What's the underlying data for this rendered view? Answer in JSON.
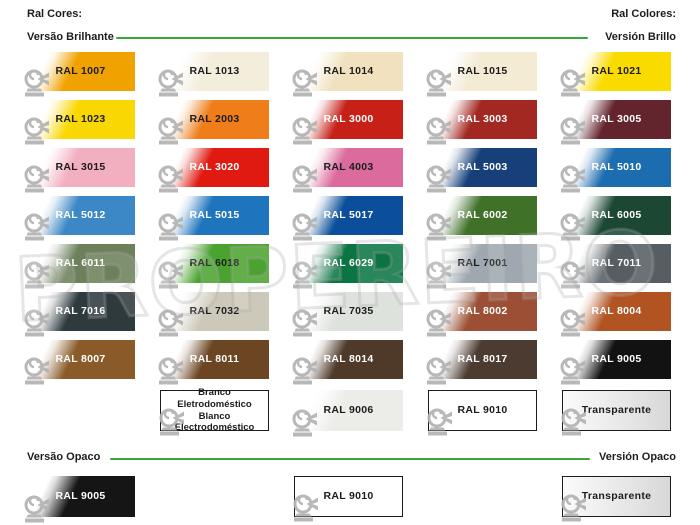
{
  "header": {
    "left": "Ral Cores:",
    "right": "Ral Colores:"
  },
  "sections": {
    "gloss": {
      "label_left": "Versão Brilhante",
      "label_right": "Versión Brillo"
    },
    "matte": {
      "label_left": "Versão Opaco",
      "label_right": "Versión Opaco"
    }
  },
  "accent_line_color": "#3aa63a",
  "watermark": {
    "text": "PROPEREIRO"
  },
  "text_colors": {
    "dark": "#1c1c1c",
    "light": "#ffffff"
  },
  "transparent_gradient": {
    "from": "#fbfbfb",
    "to": "#d8d8d8"
  },
  "border_color": "#1c1c1c",
  "icon_name": "roller-shutter-coil-icon",
  "gloss_swatches": [
    {
      "label": "RAL 1007",
      "color": "#F0A300",
      "text": "dark",
      "col": 0,
      "row": 0
    },
    {
      "label": "RAL 1013",
      "color": "#F3EDDC",
      "text": "dark",
      "col": 1,
      "row": 0
    },
    {
      "label": "RAL 1014",
      "color": "#F1E1BE",
      "text": "dark",
      "col": 2,
      "row": 0
    },
    {
      "label": "RAL 1015",
      "color": "#F4EBD5",
      "text": "dark",
      "col": 3,
      "row": 0
    },
    {
      "label": "RAL 1021",
      "color": "#FADB00",
      "text": "dark",
      "col": 4,
      "row": 0
    },
    {
      "label": "RAL 1023",
      "color": "#F9D703",
      "text": "dark",
      "col": 0,
      "row": 1
    },
    {
      "label": "RAL 2003",
      "color": "#EF7D1A",
      "text": "dark",
      "col": 1,
      "row": 1
    },
    {
      "label": "RAL 3000",
      "color": "#C62017",
      "text": "light",
      "col": 2,
      "row": 1
    },
    {
      "label": "RAL 3003",
      "color": "#A42822",
      "text": "light",
      "col": 3,
      "row": 1
    },
    {
      "label": "RAL 3005",
      "color": "#64242E",
      "text": "light",
      "col": 4,
      "row": 1
    },
    {
      "label": "RAL 3015",
      "color": "#F2AFC0",
      "text": "dark",
      "col": 0,
      "row": 2
    },
    {
      "label": "RAL 3020",
      "color": "#E01A10",
      "text": "light",
      "col": 1,
      "row": 2
    },
    {
      "label": "RAL 4003",
      "color": "#DC6B9D",
      "text": "dark",
      "col": 2,
      "row": 2
    },
    {
      "label": "RAL 5003",
      "color": "#17407A",
      "text": "light",
      "col": 3,
      "row": 2
    },
    {
      "label": "RAL 5010",
      "color": "#1C6CB0",
      "text": "light",
      "col": 4,
      "row": 2
    },
    {
      "label": "RAL 5012",
      "color": "#3C88C6",
      "text": "light",
      "col": 0,
      "row": 3
    },
    {
      "label": "RAL 5015",
      "color": "#1E75BE",
      "text": "light",
      "col": 1,
      "row": 3
    },
    {
      "label": "RAL 5017",
      "color": "#0B4E9C",
      "text": "light",
      "col": 2,
      "row": 3
    },
    {
      "label": "RAL 6002",
      "color": "#3F7128",
      "text": "light",
      "col": 3,
      "row": 3
    },
    {
      "label": "RAL 6005",
      "color": "#1B4733",
      "text": "light",
      "col": 4,
      "row": 3
    },
    {
      "label": "RAL 6011",
      "color": "#6C805A",
      "text": "light",
      "col": 0,
      "row": 4
    },
    {
      "label": "RAL 6018",
      "color": "#4BA32F",
      "text": "dark",
      "col": 1,
      "row": 4
    },
    {
      "label": "RAL 6029",
      "color": "#0B7443",
      "text": "light",
      "col": 2,
      "row": 4
    },
    {
      "label": "RAL 7001",
      "color": "#9FA8B0",
      "text": "dark",
      "col": 3,
      "row": 4
    },
    {
      "label": "RAL 7011",
      "color": "#565E63",
      "text": "light",
      "col": 4,
      "row": 4
    },
    {
      "label": "RAL 7016",
      "color": "#2E3A3E",
      "text": "light",
      "col": 0,
      "row": 5
    },
    {
      "label": "RAL 7032",
      "color": "#CDC9BA",
      "text": "dark",
      "col": 1,
      "row": 5
    },
    {
      "label": "RAL 7035",
      "color": "#DEE2DD",
      "text": "dark",
      "col": 2,
      "row": 5
    },
    {
      "label": "RAL 8002",
      "color": "#9C4F35",
      "text": "light",
      "col": 3,
      "row": 5
    },
    {
      "label": "RAL 8004",
      "color": "#B25322",
      "text": "light",
      "col": 4,
      "row": 5
    },
    {
      "label": "RAL 8007",
      "color": "#8A5A28",
      "text": "light",
      "col": 0,
      "row": 6
    },
    {
      "label": "RAL 8011",
      "color": "#6C4523",
      "text": "light",
      "col": 1,
      "row": 6
    },
    {
      "label": "RAL 8014",
      "color": "#4F3A2A",
      "text": "light",
      "col": 2,
      "row": 6
    },
    {
      "label": "RAL 8017",
      "color": "#4B3B31",
      "text": "light",
      "col": 3,
      "row": 6
    },
    {
      "label": "RAL 9005",
      "color": "#121212",
      "text": "light",
      "col": 4,
      "row": 6
    },
    {
      "label": "Branco Eletrodoméstico",
      "label2": "Blanco Electrodoméstico",
      "color": "#FFFFFF",
      "text": "dark",
      "border": true,
      "shine": false,
      "col": 1,
      "row": 7
    },
    {
      "label": "RAL 9006",
      "color": "#ECEDE9",
      "text": "dark",
      "col": 2,
      "row": 7
    },
    {
      "label": "RAL 9010",
      "color": "#FFFFFF",
      "text": "dark",
      "border": true,
      "shine": false,
      "col": 3,
      "row": 7
    },
    {
      "label": "Transparente",
      "color": "#E3E3E3",
      "transparent": true,
      "text": "dark",
      "border": true,
      "shine": false,
      "col": 4,
      "row": 7
    }
  ],
  "matte_swatches": [
    {
      "label": "RAL 9005",
      "color": "#151515",
      "text": "light",
      "col": 0
    },
    {
      "label": "RAL 9010",
      "color": "#FFFFFF",
      "text": "dark",
      "border": true,
      "shine": false,
      "col": 2
    },
    {
      "label": "Transparente",
      "color": "#E3E3E3",
      "transparent": true,
      "text": "dark",
      "border": true,
      "shine": false,
      "col": 4
    }
  ]
}
